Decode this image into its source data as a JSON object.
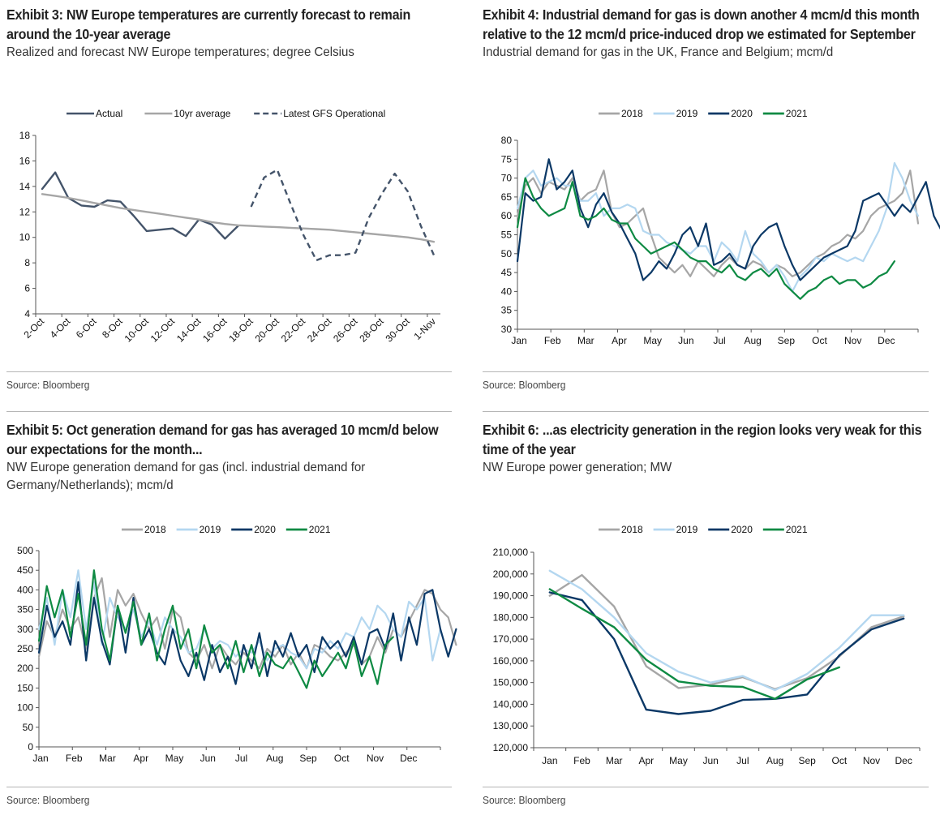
{
  "exhibits": [
    {
      "id": "exhibit-3",
      "title": "Exhibit 3: NW Europe temperatures are currently forecast to remain around the 10-year average",
      "subtitle": "Realized and forecast NW Europe temperatures; degree Celsius",
      "source": "Source: Bloomberg"
    },
    {
      "id": "exhibit-4",
      "title": "Exhibit 4: Industrial demand for gas is down another 4 mcm/d this month relative to the 12 mcm/d price-induced drop we estimated for September",
      "subtitle": "Industrial demand for gas in the UK, France and Belgium; mcm/d",
      "source": "Source: Bloomberg"
    },
    {
      "id": "exhibit-5",
      "title": "Exhibit 5: Oct generation demand for gas has averaged 10 mcm/d below our expectations for the month...",
      "subtitle": "NW Europe generation demand for gas (incl. industrial demand for Germany/Netherlands); mcm/d",
      "source": "Source: Bloomberg"
    },
    {
      "id": "exhibit-6",
      "title": "Exhibit 6: ...as electricity generation in the region looks very weak for this time of the year",
      "subtitle": "NW Europe power generation; MW",
      "source": "Source: Bloomberg"
    }
  ],
  "chart_data": [
    {
      "type": "line",
      "title": "Exhibit 3",
      "xlabel": "",
      "ylabel": "degree Celsius",
      "ylim": [
        4,
        18
      ],
      "yticks": [
        4,
        6,
        8,
        10,
        12,
        14,
        16,
        18
      ],
      "x": [
        "2-Oct",
        "3-Oct",
        "4-Oct",
        "5-Oct",
        "6-Oct",
        "7-Oct",
        "8-Oct",
        "9-Oct",
        "10-Oct",
        "11-Oct",
        "12-Oct",
        "13-Oct",
        "14-Oct",
        "15-Oct",
        "16-Oct",
        "17-Oct",
        "18-Oct",
        "19-Oct",
        "20-Oct",
        "21-Oct",
        "22-Oct",
        "23-Oct",
        "24-Oct",
        "25-Oct",
        "26-Oct",
        "27-Oct",
        "28-Oct",
        "29-Oct",
        "30-Oct",
        "31-Oct",
        "1-Nov"
      ],
      "xtick_labels": [
        "2-Oct",
        "4-Oct",
        "6-Oct",
        "8-Oct",
        "10-Oct",
        "12-Oct",
        "14-Oct",
        "16-Oct",
        "18-Oct",
        "20-Oct",
        "22-Oct",
        "24-Oct",
        "26-Oct",
        "28-Oct",
        "30-Oct",
        "1-Nov"
      ],
      "legend_position": "top-center",
      "grid": false,
      "series": [
        {
          "name": "Actual",
          "color": "#44546a",
          "style": "solid",
          "values": [
            13.8,
            15.1,
            13.1,
            12.5,
            12.4,
            12.9,
            12.8,
            11.7,
            10.5,
            10.6,
            10.7,
            10.1,
            11.4,
            11.0,
            9.9,
            10.9,
            null,
            null,
            null,
            null,
            null,
            null,
            null,
            null,
            null,
            null,
            null,
            null,
            null,
            null,
            null
          ]
        },
        {
          "name": "10yr average",
          "color": "#a6a6a6",
          "style": "solid",
          "values": [
            13.4,
            13.25,
            13.1,
            12.9,
            12.7,
            12.5,
            12.3,
            12.15,
            12.0,
            11.85,
            11.7,
            11.55,
            11.4,
            11.2,
            11.05,
            10.95,
            10.9,
            10.85,
            10.8,
            10.75,
            10.7,
            10.65,
            10.6,
            10.5,
            10.4,
            10.3,
            10.2,
            10.1,
            10.0,
            9.85,
            9.65
          ]
        },
        {
          "name": "Latest GFS Operational",
          "color": "#44546a",
          "style": "dashed",
          "values": [
            null,
            null,
            null,
            null,
            null,
            null,
            null,
            null,
            null,
            null,
            null,
            null,
            null,
            null,
            null,
            null,
            12.4,
            14.7,
            15.3,
            12.7,
            10.2,
            8.2,
            8.6,
            8.6,
            8.8,
            11.5,
            13.4,
            15.0,
            13.6,
            10.9,
            8.6
          ]
        }
      ]
    },
    {
      "type": "line",
      "title": "Exhibit 4",
      "xlabel": "",
      "ylabel": "mcm/d",
      "ylim": [
        30,
        80
      ],
      "yticks": [
        30,
        35,
        40,
        45,
        50,
        55,
        60,
        65,
        70,
        75,
        80
      ],
      "categories": [
        "Jan",
        "Feb",
        "Mar",
        "Apr",
        "May",
        "Jun",
        "Jul",
        "Aug",
        "Sep",
        "Oct",
        "Nov",
        "Dec"
      ],
      "x_resolution": "approx. weekly (52 points per year)",
      "legend_position": "top-center",
      "grid": false,
      "series": [
        {
          "name": "2018",
          "color": "#a6a6a6",
          "values": [
            60,
            68,
            70,
            66,
            69,
            68,
            67,
            70,
            64,
            66,
            67,
            72,
            61,
            57,
            58,
            60,
            62,
            55,
            49,
            47,
            45,
            47,
            44,
            48,
            46,
            44,
            47,
            49,
            47,
            46,
            48,
            47,
            45,
            47,
            46,
            44,
            45,
            47,
            49,
            50,
            52,
            53,
            55,
            54,
            56,
            60,
            62,
            63,
            64,
            66,
            72,
            58
          ]
        },
        {
          "name": "2019",
          "color": "#b4d7f0",
          "values": [
            62,
            70,
            72,
            68,
            69,
            70,
            68,
            68,
            64,
            64,
            66,
            60,
            62,
            62,
            63,
            62,
            56,
            55,
            55,
            53,
            52,
            51,
            50,
            52,
            52,
            48,
            53,
            51,
            48,
            56,
            50,
            48,
            45,
            47,
            44,
            40,
            44,
            46,
            49,
            48,
            50,
            49,
            48,
            49,
            48,
            52,
            56,
            62,
            74,
            70,
            64,
            60
          ]
        },
        {
          "name": "2020",
          "color": "#0b3866",
          "values": [
            48,
            66,
            64,
            65,
            75,
            67,
            69,
            72,
            62,
            57,
            63,
            66,
            61,
            58,
            54,
            50,
            43,
            45,
            48,
            46,
            50,
            55,
            57,
            52,
            58,
            47,
            48,
            50,
            47,
            46,
            52,
            55,
            57,
            58,
            52,
            47,
            43,
            45,
            47,
            49,
            50,
            51,
            52,
            56,
            64,
            65,
            66,
            63,
            60,
            63,
            61,
            65,
            69,
            60,
            56,
            58
          ]
        },
        {
          "name": "2021",
          "color": "#0e8a43",
          "values": [
            57,
            70,
            65,
            62,
            60,
            61,
            62,
            69,
            60,
            59,
            60,
            62,
            59,
            58,
            58,
            54,
            52,
            50,
            51,
            52,
            53,
            51,
            49,
            48,
            48,
            46,
            45,
            47,
            44,
            43,
            45,
            46,
            44,
            46,
            42,
            40,
            38,
            40,
            41,
            43,
            44,
            42,
            43,
            43,
            41,
            42,
            44,
            45,
            48
          ]
        }
      ]
    },
    {
      "type": "line",
      "title": "Exhibit 5",
      "xlabel": "",
      "ylabel": "mcm/d",
      "ylim": [
        0,
        500
      ],
      "yticks": [
        0,
        50,
        100,
        150,
        200,
        250,
        300,
        350,
        400,
        450,
        500
      ],
      "categories": [
        "Jan",
        "Feb",
        "Mar",
        "Apr",
        "May",
        "Jun",
        "Jul",
        "Aug",
        "Sep",
        "Oct",
        "Nov",
        "Dec"
      ],
      "x_resolution": "approx. weekly (52 points per year)",
      "legend_position": "top-center",
      "grid": false,
      "series": [
        {
          "name": "2018",
          "color": "#a6a6a6",
          "values": [
            230,
            320,
            280,
            350,
            300,
            330,
            250,
            380,
            430,
            280,
            400,
            360,
            390,
            340,
            300,
            330,
            250,
            350,
            330,
            240,
            220,
            260,
            200,
            260,
            230,
            210,
            240,
            220,
            200,
            250,
            230,
            260,
            210,
            240,
            200,
            260,
            250,
            230,
            220,
            240,
            260,
            210,
            230,
            280,
            240,
            300,
            280,
            320,
            360,
            400,
            390,
            350,
            330,
            260
          ]
        },
        {
          "name": "2019",
          "color": "#b4d7f0",
          "values": [
            300,
            380,
            260,
            400,
            330,
            450,
            300,
            420,
            260,
            380,
            330,
            300,
            350,
            280,
            320,
            260,
            330,
            300,
            280,
            240,
            250,
            300,
            250,
            270,
            260,
            230,
            250,
            240,
            270,
            220,
            250,
            260,
            240,
            230,
            200,
            250,
            240,
            270,
            250,
            290,
            280,
            330,
            300,
            360,
            340,
            300,
            280,
            370,
            350,
            380,
            220,
            300
          ]
        },
        {
          "name": "2020",
          "color": "#0b3866",
          "values": [
            240,
            360,
            280,
            320,
            260,
            420,
            220,
            380,
            270,
            210,
            360,
            240,
            380,
            260,
            300,
            240,
            210,
            300,
            220,
            180,
            240,
            170,
            260,
            190,
            230,
            160,
            260,
            200,
            290,
            180,
            270,
            230,
            290,
            230,
            260,
            190,
            280,
            250,
            270,
            230,
            280,
            210,
            290,
            300,
            250,
            340,
            220,
            330,
            260,
            390,
            400,
            300,
            230,
            300
          ]
        },
        {
          "name": "2021",
          "color": "#0e8a43",
          "values": [
            270,
            410,
            330,
            400,
            280,
            390,
            260,
            450,
            300,
            220,
            360,
            290,
            370,
            260,
            340,
            220,
            300,
            360,
            250,
            300,
            200,
            310,
            240,
            260,
            200,
            270,
            190,
            260,
            180,
            240,
            210,
            200,
            230,
            190,
            150,
            220,
            180,
            210,
            240,
            200,
            270,
            180,
            230,
            160,
            260,
            280
          ]
        }
      ]
    },
    {
      "type": "line",
      "title": "Exhibit 6",
      "xlabel": "",
      "ylabel": "MW",
      "ylim": [
        120000,
        210000
      ],
      "yticks": [
        120000,
        130000,
        140000,
        150000,
        160000,
        170000,
        180000,
        190000,
        200000,
        210000
      ],
      "categories": [
        "Jan",
        "Feb",
        "Mar",
        "Apr",
        "May",
        "Jun",
        "Jul",
        "Aug",
        "Sep",
        "Oct",
        "Nov",
        "Dec"
      ],
      "legend_position": "top-center",
      "grid": false,
      "series": [
        {
          "name": "2018",
          "color": "#a6a6a6",
          "values": [
            190000,
            199500,
            185000,
            157500,
            147500,
            149000,
            152500,
            147000,
            152000,
            162000,
            175500,
            180500
          ]
        },
        {
          "name": "2019",
          "color": "#b4d7f0",
          "values": [
            201500,
            193000,
            180000,
            163500,
            155000,
            150000,
            153000,
            146500,
            154000,
            166000,
            181000,
            181000
          ]
        },
        {
          "name": "2020",
          "color": "#0b3866",
          "values": [
            191500,
            188000,
            170000,
            137500,
            135500,
            137000,
            142000,
            142500,
            144500,
            162500,
            174500,
            179500
          ]
        },
        {
          "name": "2021",
          "color": "#0e8a43",
          "values": [
            193000,
            184000,
            175500,
            160500,
            150500,
            148500,
            148000,
            142500,
            151500,
            157000,
            null,
            null
          ]
        }
      ]
    }
  ]
}
